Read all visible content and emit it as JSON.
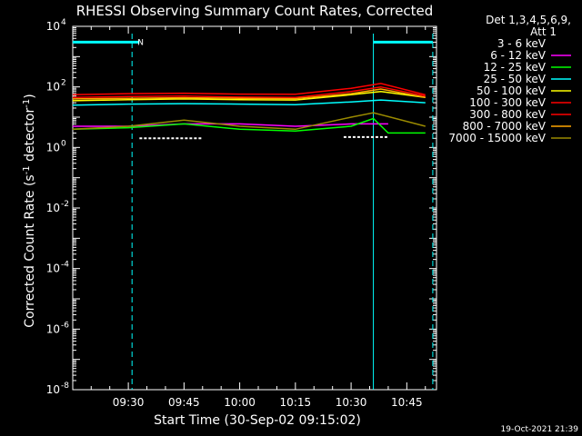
{
  "chart_data": {
    "type": "line",
    "title": "RHESSI Observing Summary Count Rates, Corrected",
    "xlabel": "Start Time (30-Sep-02 09:15:02)",
    "ylabel": "Corrected Count Rate (s⁻¹ detector⁻¹)",
    "yscale": "log",
    "ylim": [
      1e-08,
      10000.0
    ],
    "xlim": [
      "09:15:02",
      "10:53:00"
    ],
    "x_ticks": [
      "09:30",
      "09:45",
      "10:00",
      "10:15",
      "10:30",
      "10:45"
    ],
    "y_ticks": [
      {
        "exp": 4,
        "label": "10",
        "sup": "4"
      },
      {
        "exp": 2,
        "label": "10",
        "sup": "2"
      },
      {
        "exp": 0,
        "label": "10",
        "sup": "0"
      },
      {
        "exp": -2,
        "label": "10",
        "sup": "-2"
      },
      {
        "exp": -4,
        "label": "10",
        "sup": "-4"
      },
      {
        "exp": -6,
        "label": "10",
        "sup": "-6"
      },
      {
        "exp": -8,
        "label": "10",
        "sup": "-8"
      }
    ],
    "legend_title": [
      "Det 1,3,4,5,6,9,",
      "Att 1"
    ],
    "legend_placement": "right",
    "footer_timestamp": "19-Oct-2021 21:39",
    "series": [
      {
        "name": "3 - 6 keV",
        "color": "#000000",
        "segments": [
          [
            "09:33",
            "09:50",
            2.0
          ],
          [
            "10:28",
            "10:40",
            2.2
          ]
        ]
      },
      {
        "name": "6 - 12 keV",
        "color": "#ff00ff",
        "x": [
          "09:15",
          "09:30",
          "09:45",
          "10:00",
          "10:15",
          "10:30",
          "10:40"
        ],
        "values": [
          5,
          5,
          6,
          6,
          5,
          6,
          6
        ]
      },
      {
        "name": "12 - 25 keV",
        "color": "#00ff00",
        "x": [
          "09:15",
          "09:30",
          "09:45",
          "10:00",
          "10:15",
          "10:30",
          "10:36",
          "10:40",
          "10:50"
        ],
        "values": [
          4,
          4.5,
          6,
          4,
          3.5,
          5,
          9,
          3,
          3
        ]
      },
      {
        "name": "25 - 50 keV",
        "color": "#00ffff",
        "x": [
          "09:15",
          "09:30",
          "09:45",
          "10:00",
          "10:15",
          "10:30",
          "10:38",
          "10:50"
        ],
        "values": [
          25,
          27,
          28,
          27,
          26,
          32,
          37,
          30
        ]
      },
      {
        "name": "50 - 100 keV",
        "color": "#ffff00",
        "x": [
          "09:15",
          "09:30",
          "09:45",
          "10:00",
          "10:15",
          "10:30",
          "10:38",
          "10:50"
        ],
        "values": [
          35,
          38,
          40,
          38,
          37,
          55,
          70,
          45
        ]
      },
      {
        "name": "100 - 300 keV",
        "color": "#ff0000",
        "x": [
          "09:15",
          "09:30",
          "09:45",
          "10:00",
          "10:15",
          "10:30",
          "10:38",
          "10:50"
        ],
        "values": [
          55,
          60,
          62,
          58,
          57,
          90,
          130,
          55
        ]
      },
      {
        "name": "300 - 800 keV",
        "color": "#ff0000",
        "x": [
          "09:15",
          "09:30",
          "09:45",
          "10:00",
          "10:15",
          "10:30",
          "10:38",
          "10:50"
        ],
        "values": [
          45,
          48,
          50,
          46,
          45,
          70,
          100,
          50
        ]
      },
      {
        "name": "800 - 7000 keV",
        "color": "#ffa500",
        "x": [
          "09:15",
          "09:30",
          "09:45",
          "10:00",
          "10:15",
          "10:30",
          "10:38",
          "10:50"
        ],
        "values": [
          40,
          42,
          44,
          42,
          41,
          60,
          85,
          45
        ]
      },
      {
        "name": "7000 - 15000 keV",
        "color": "#9b8b00",
        "x": [
          "09:15",
          "09:30",
          "09:45",
          "10:00",
          "10:15",
          "10:30",
          "10:36",
          "10:50"
        ],
        "values": [
          4,
          5,
          8,
          5,
          4,
          10,
          14,
          5
        ]
      }
    ],
    "attenuator_bars": [
      [
        "09:15",
        "09:33"
      ],
      [
        "10:36",
        "10:52"
      ]
    ],
    "attenuator_level": 3000,
    "marker_label": "N",
    "marker_lines": [
      {
        "time": "09:31",
        "color": "#00ffff",
        "style": "dashed"
      },
      {
        "time": "10:36",
        "color": "#00ffff",
        "style": "solid"
      },
      {
        "time": "10:52",
        "color": "#00ffff",
        "style": "dashed"
      }
    ]
  }
}
